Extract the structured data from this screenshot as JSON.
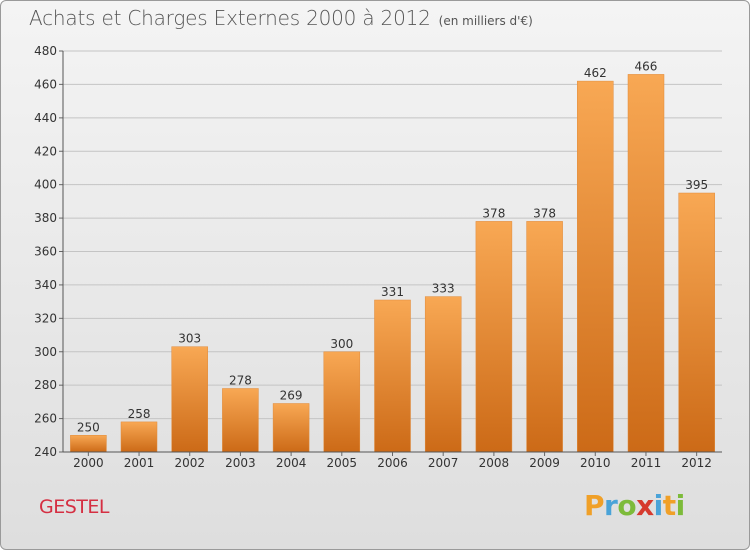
{
  "title": "Achats et Charges Externes 2000 à 2012",
  "unit_label": "(en milliers d'€)",
  "commune": "GESTEL",
  "logo": {
    "text": "Proxiti",
    "name": "proxiti-logo"
  },
  "colors": {
    "bar_top": "#f7a352",
    "bar_bottom": "#cd6b18",
    "grid": "#bfbfbf",
    "text": "#333333",
    "commune": "#d52f42"
  },
  "chart_data": {
    "type": "bar",
    "categories": [
      "2000",
      "2001",
      "2002",
      "2003",
      "2004",
      "2005",
      "2006",
      "2007",
      "2008",
      "2009",
      "2010",
      "2011",
      "2012"
    ],
    "values": [
      250,
      258,
      303,
      278,
      269,
      300,
      331,
      333,
      378,
      378,
      462,
      466,
      395
    ],
    "title": "Achats et Charges Externes 2000 à 2012",
    "xlabel": "",
    "ylabel": "",
    "ylim": [
      240,
      480
    ],
    "yticks": [
      240,
      260,
      280,
      300,
      320,
      340,
      360,
      380,
      400,
      420,
      440,
      460,
      480
    ],
    "grid": true,
    "legend": "none"
  }
}
